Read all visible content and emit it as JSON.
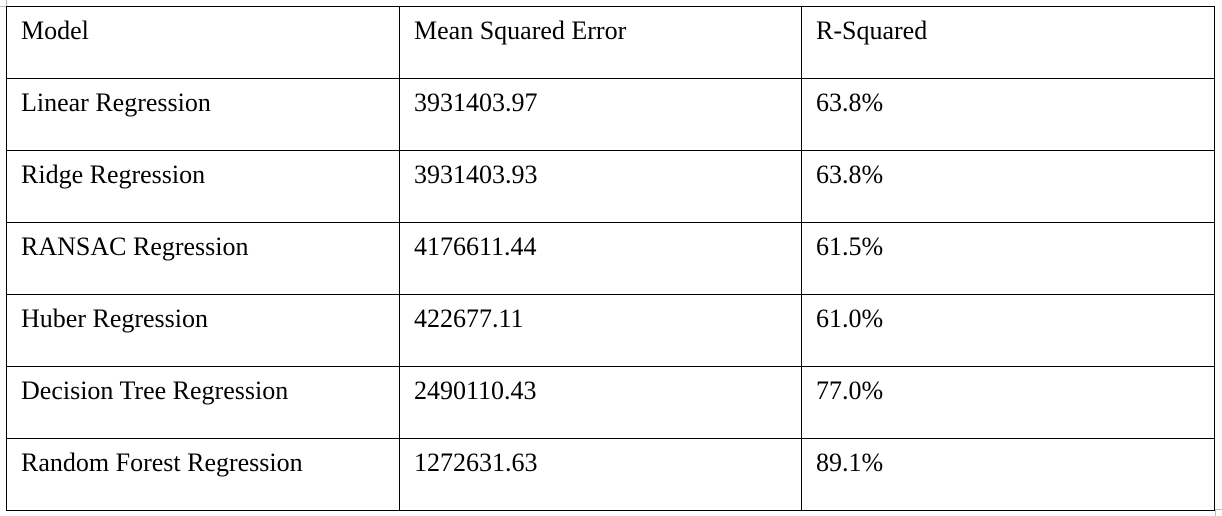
{
  "table": {
    "headers": [
      "Model",
      "Mean Squared Error",
      "R-Squared"
    ],
    "rows": [
      {
        "model": "Linear Regression",
        "mse": "3931403.97",
        "r2": "63.8%"
      },
      {
        "model": "Ridge Regression",
        "mse": "3931403.93",
        "r2": "63.8%"
      },
      {
        "model": "RANSAC Regression",
        "mse": "4176611.44",
        "r2": "61.5%"
      },
      {
        "model": "Huber Regression",
        "mse": "422677.11",
        "r2": "61.0%"
      },
      {
        "model": "Decision Tree Regression",
        "mse": "2490110.43",
        "r2": "77.0%"
      },
      {
        "model": "Random Forest Regression",
        "mse": "1272631.63",
        "r2": "89.1%"
      }
    ]
  }
}
